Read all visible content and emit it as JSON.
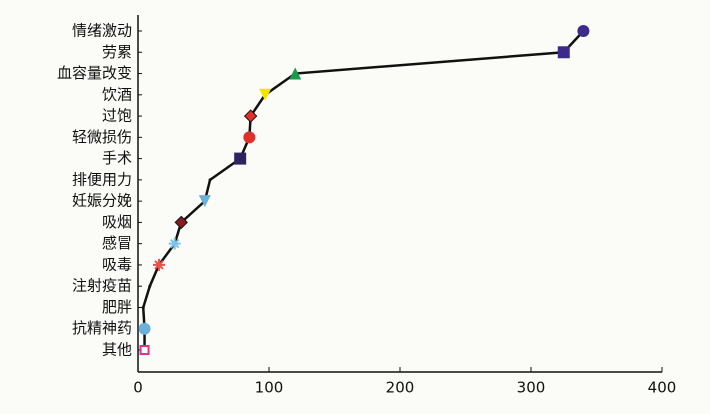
{
  "chart_data": {
    "type": "line",
    "categories": [
      "情绪激动",
      "劳累",
      "血容量改变",
      "饮酒",
      "过饱",
      "轻微损伤",
      "手术",
      "排便用力",
      "妊娠分娩",
      "吸烟",
      "感冒",
      "吸毒",
      "注射疫苗",
      "肥胖",
      "抗精神药",
      "其他"
    ],
    "values": [
      340,
      325,
      120,
      97,
      86,
      85,
      78,
      55,
      51,
      33,
      28,
      16,
      9,
      4,
      5,
      5
    ],
    "color": "#111111",
    "point_shapes": [
      "circle",
      "square",
      "triangle",
      "triangle-down",
      "diamond",
      "circle",
      "square",
      null,
      "triangle-down",
      "diamond",
      "star",
      "star",
      null,
      null,
      "circle",
      "square-open"
    ],
    "point_colors": [
      "#3d2b8c",
      "#3d2b8c",
      "#1a9a4a",
      "#f5e400",
      "#e0302a",
      "#e0302a",
      "#2e2560",
      null,
      "#6ab0d8",
      "#8b1a1a",
      "#7fc2e8",
      "#e8504a",
      null,
      null,
      "#6ab0d8",
      "#e0308a"
    ],
    "xlim": [
      0,
      400
    ],
    "xticks": [
      0,
      100,
      200,
      300,
      400
    ]
  }
}
